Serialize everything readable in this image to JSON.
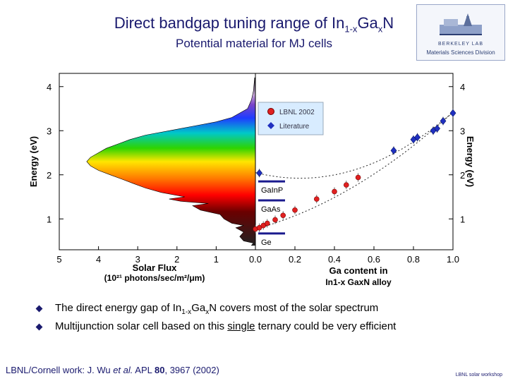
{
  "slide": {
    "title_main": "Direct bandgap tuning range of In",
    "title_sub1": "1-x",
    "title_mid": "Ga",
    "title_sub2": "x",
    "title_end": "N",
    "subtitle": "Potential material for MJ cells",
    "logo_line1": "BERKELEY LAB",
    "logo_line2": "Materials Sciences Division",
    "bullet1_pre": "The direct energy gap of In",
    "bullet1_sub1": "1-x",
    "bullet1_mid": "Ga",
    "bullet1_sub2": "x",
    "bullet1_post": "N covers most of the solar spectrum",
    "bullet2_pre": "Multijunction solar cell based on this ",
    "bullet2_single": "single",
    "bullet2_post": " ternary could be very efficient",
    "footer_pre": "LBNL/Cornell work:  J. Wu ",
    "footer_etal": "et al.",
    "footer_journal": " APL ",
    "footer_vol": "80",
    "footer_post": ", 3967 (2002)",
    "footer_right": "LBNL solar workshop"
  },
  "chart_data": [
    {
      "type": "area",
      "xlabel": "Solar Flux",
      "xlabel_units": "(10²¹ photons/sec/m²/μm)",
      "ylabel": "Energy (eV)",
      "xlim": [
        5,
        0
      ],
      "ylim": [
        0.3,
        4.3
      ],
      "xticks": [
        "5",
        "4",
        "3",
        "2",
        "1",
        "0.0"
      ],
      "yticks": [
        "1",
        "2",
        "3",
        "4"
      ],
      "spectrum": [
        [
          4.2,
          0.02
        ],
        [
          3.9,
          0.05
        ],
        [
          3.7,
          0.1
        ],
        [
          3.5,
          0.2
        ],
        [
          3.3,
          0.6
        ],
        [
          3.2,
          1.0
        ],
        [
          3.1,
          1.6
        ],
        [
          3.0,
          2.2
        ],
        [
          2.9,
          2.8
        ],
        [
          2.8,
          3.2
        ],
        [
          2.7,
          3.5
        ],
        [
          2.6,
          3.8
        ],
        [
          2.5,
          4.0
        ],
        [
          2.4,
          4.2
        ],
        [
          2.3,
          4.3
        ],
        [
          2.2,
          4.2
        ],
        [
          2.1,
          4.0
        ],
        [
          2.0,
          3.7
        ],
        [
          1.9,
          3.4
        ],
        [
          1.8,
          3.1
        ],
        [
          1.7,
          2.8
        ],
        [
          1.6,
          2.4
        ],
        [
          1.5,
          1.8
        ],
        [
          1.45,
          2.2
        ],
        [
          1.4,
          1.9
        ],
        [
          1.35,
          1.2
        ],
        [
          1.3,
          1.6
        ],
        [
          1.2,
          1.4
        ],
        [
          1.1,
          0.9
        ],
        [
          1.0,
          0.8
        ],
        [
          0.9,
          0.6
        ],
        [
          0.85,
          0.3
        ],
        [
          0.8,
          0.5
        ],
        [
          0.7,
          0.3
        ],
        [
          0.6,
          0.4
        ],
        [
          0.5,
          0.3
        ],
        [
          0.45,
          0.05
        ],
        [
          0.4,
          0.1
        ]
      ]
    },
    {
      "type": "scatter",
      "xlabel": "Ga content in",
      "xlabel2": "In1-x GaxN alloy",
      "ylabel": "Energy (eV)",
      "xlim": [
        0,
        1.0
      ],
      "ylim": [
        0.3,
        4.3
      ],
      "xticks": [
        "0.0",
        "0.2",
        "0.4",
        "0.6",
        "0.8",
        "1.0"
      ],
      "yticks": [
        "1",
        "2",
        "3",
        "4"
      ],
      "series": [
        {
          "name": "LBNL 2002",
          "color": "#e02020",
          "marker": "circle",
          "points": [
            [
              0.0,
              0.77
            ],
            [
              0.02,
              0.8
            ],
            [
              0.04,
              0.85
            ],
            [
              0.06,
              0.9
            ],
            [
              0.1,
              0.98
            ],
            [
              0.14,
              1.08
            ],
            [
              0.2,
              1.2
            ],
            [
              0.31,
              1.45
            ],
            [
              0.4,
              1.62
            ],
            [
              0.46,
              1.77
            ],
            [
              0.52,
              1.94
            ]
          ]
        },
        {
          "name": "Literature",
          "color": "#2030c0",
          "marker": "diamond",
          "points": [
            [
              0.02,
              2.04
            ],
            [
              0.7,
              2.55
            ],
            [
              0.8,
              2.8
            ],
            [
              0.82,
              2.85
            ],
            [
              0.9,
              3.0
            ],
            [
              0.92,
              3.05
            ],
            [
              0.95,
              3.22
            ],
            [
              1.0,
              3.4
            ]
          ]
        }
      ],
      "materials": [
        "GaInP",
        "GaAs",
        "Ge"
      ],
      "material_gaps": [
        1.85,
        1.42,
        0.67
      ]
    }
  ]
}
